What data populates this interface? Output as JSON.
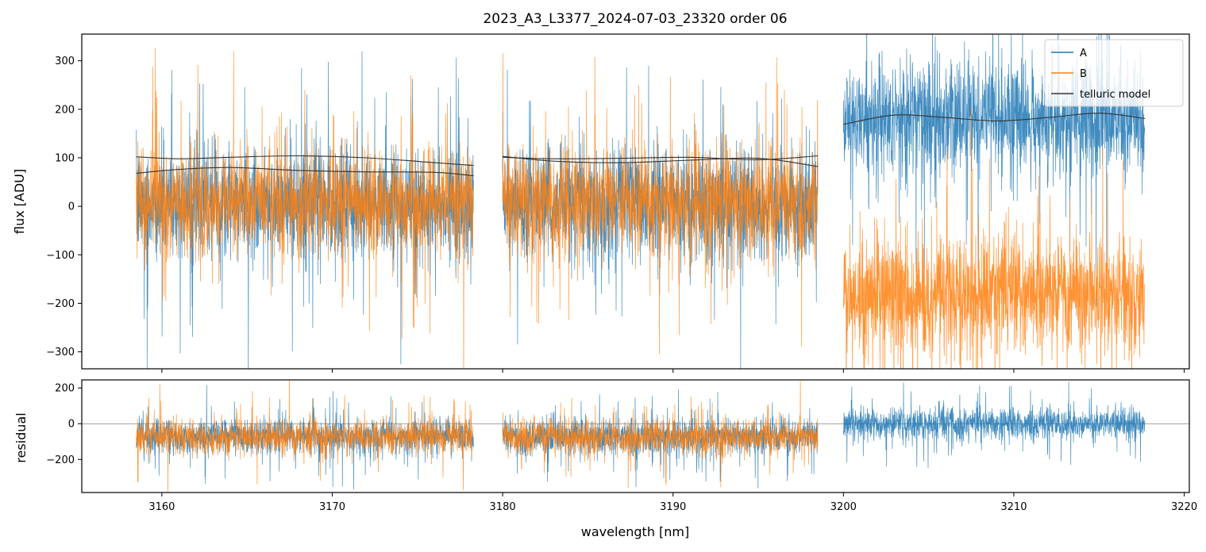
{
  "title": "2023_A3_L3377_2024-07-03_23320  order 06",
  "colors": {
    "A": "#1f77b4",
    "B": "#ff7f0e",
    "model": "#333333",
    "zero_line": "#808080"
  },
  "chart_data": [
    {
      "type": "line",
      "panel": "flux",
      "title": "2023_A3_L3377_2024-07-03_23320  order 06",
      "xlabel": "",
      "ylabel": "flux [ADU]",
      "xlim": [
        3155.3,
        3220.3
      ],
      "ylim": [
        -335,
        355
      ],
      "xticks": [
        3160,
        3170,
        3180,
        3190,
        3200,
        3210,
        3220
      ],
      "yticks": [
        -300,
        -200,
        -100,
        0,
        100,
        200,
        300
      ],
      "ytick_labels": [
        "−300",
        "−200",
        "−100",
        "0",
        "100",
        "200",
        "300"
      ],
      "legend": {
        "position": "upper right",
        "entries": [
          "A",
          "B",
          "telluric model"
        ]
      },
      "segments": [
        {
          "x_range": [
            3158.5,
            3178.3
          ],
          "A": {
            "mean": 5,
            "spread": 100
          },
          "B": {
            "mean": 8,
            "spread": 100
          },
          "model_A": {
            "x": [
              3158.5,
              3161,
              3164,
              3168,
              3172,
              3176,
              3178.3
            ],
            "y": [
              102,
              98,
              101,
              104,
              100,
              90,
              84
            ]
          },
          "model_B": {
            "x": [
              3158.5,
              3161,
              3164,
              3168,
              3172,
              3176,
              3178.3
            ],
            "y": [
              68,
              76,
              80,
              74,
              71,
              70,
              63
            ]
          }
        },
        {
          "x_range": [
            3180.0,
            3198.5
          ],
          "A": {
            "mean": 5,
            "spread": 100
          },
          "B": {
            "mean": 8,
            "spread": 100
          },
          "model_A": {
            "x": [
              3180.0,
              3183,
              3187,
              3191,
              3195,
              3198.5
            ],
            "y": [
              103,
              93,
              90,
              95,
              99,
              82
            ]
          },
          "model_B": {
            "x": [
              3180.0,
              3183,
              3187,
              3191,
              3195,
              3198.5
            ],
            "y": [
              101,
              98,
              99,
              101,
              96,
              104
            ]
          }
        },
        {
          "x_range": [
            3200.0,
            3217.7
          ],
          "A": {
            "mean": 180,
            "spread": 110
          },
          "B": {
            "mean": -180,
            "spread": 110
          },
          "model_A": {
            "x": [
              3200.0,
              3203,
              3206,
              3209,
              3212,
              3215,
              3217.7
            ],
            "y": [
              169,
              188,
              183,
              176,
              183,
              192,
              181
            ]
          }
        }
      ]
    },
    {
      "type": "line",
      "panel": "residual",
      "xlabel": "wavelength [nm]",
      "ylabel": "residual",
      "xlim": [
        3155.3,
        3220.3
      ],
      "ylim": [
        -385,
        245
      ],
      "xticks": [
        3160,
        3170,
        3180,
        3190,
        3200,
        3210,
        3220
      ],
      "xtick_labels": [
        "3160",
        "3170",
        "3180",
        "3190",
        "3200",
        "3210",
        "3220"
      ],
      "yticks": [
        -200,
        0,
        200
      ],
      "ytick_labels": [
        "−200",
        "0",
        "200"
      ],
      "zero_line": 0,
      "segments": [
        {
          "x_range": [
            3158.5,
            3178.3
          ],
          "A": {
            "mean": -70,
            "spread": 90
          },
          "B": {
            "mean": -75,
            "spread": 90
          }
        },
        {
          "x_range": [
            3180.0,
            3198.5
          ],
          "A": {
            "mean": -70,
            "spread": 90
          },
          "B": {
            "mean": -75,
            "spread": 90
          }
        },
        {
          "x_range": [
            3200.0,
            3217.7
          ],
          "A": {
            "mean": 0,
            "spread": 85
          }
        }
      ]
    }
  ]
}
